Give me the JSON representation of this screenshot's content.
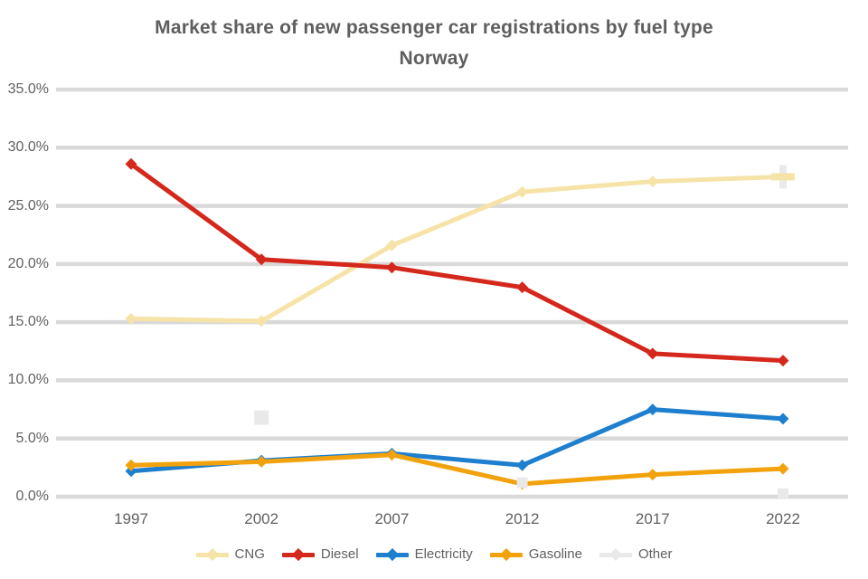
{
  "title": {
    "line1": "Market share of new passenger car registrations by fuel type",
    "line2": "Norway"
  },
  "colors": {
    "background": "#ffffff",
    "gridline": "#d9d9d9",
    "text": "#5e5e5e",
    "tick_text": "#616161",
    "series_cream": "#f6e3a8",
    "series_red": "#d4281c",
    "series_blue": "#1e7fce",
    "series_orange": "#f2a20c",
    "series_gray": "#e9e9e9"
  },
  "chart_data": {
    "type": "line",
    "title": "Market share of new passenger car registrations by fuel type",
    "subtitle": "Norway",
    "categories": [
      "1997",
      "2002",
      "2007",
      "2012",
      "2017",
      "2022"
    ],
    "series": [
      {
        "name": "CNG",
        "color": "#f6e3a8",
        "values": [
          15.3,
          15.1,
          21.6,
          26.2,
          27.1,
          27.5
        ],
        "marker": "diamond",
        "end_marker": "plus",
        "line": true
      },
      {
        "name": "Diesel",
        "color": "#d4281c",
        "values": [
          28.6,
          20.4,
          19.7,
          18.0,
          12.3,
          11.7
        ],
        "marker": "diamond",
        "line": true
      },
      {
        "name": "Electricity",
        "color": "#1e7fce",
        "values": [
          2.2,
          3.1,
          3.7,
          2.7,
          7.5,
          6.7
        ],
        "marker": "diamond",
        "line": true
      },
      {
        "name": "Gasoline",
        "color": "#f2a20c",
        "values": [
          2.7,
          3.0,
          3.6,
          1.1,
          1.9,
          2.4
        ],
        "marker": "diamond",
        "line": true
      },
      {
        "name": "Other",
        "color": "#e9e9e9",
        "values": [
          null,
          6.8,
          null,
          1.2,
          null,
          0.25
        ],
        "marker": "square",
        "line": false
      }
    ],
    "unit": "%",
    "ylim": [
      0,
      35
    ],
    "ytick_step": 5,
    "ytick_labels_top_to_bottom": [
      "35.0%",
      "30.0%",
      "25.0%",
      "20.0%",
      "15.0%",
      "10.0%",
      "5.0%",
      "0.0%"
    ],
    "grid": true,
    "legend_position": "bottom"
  }
}
